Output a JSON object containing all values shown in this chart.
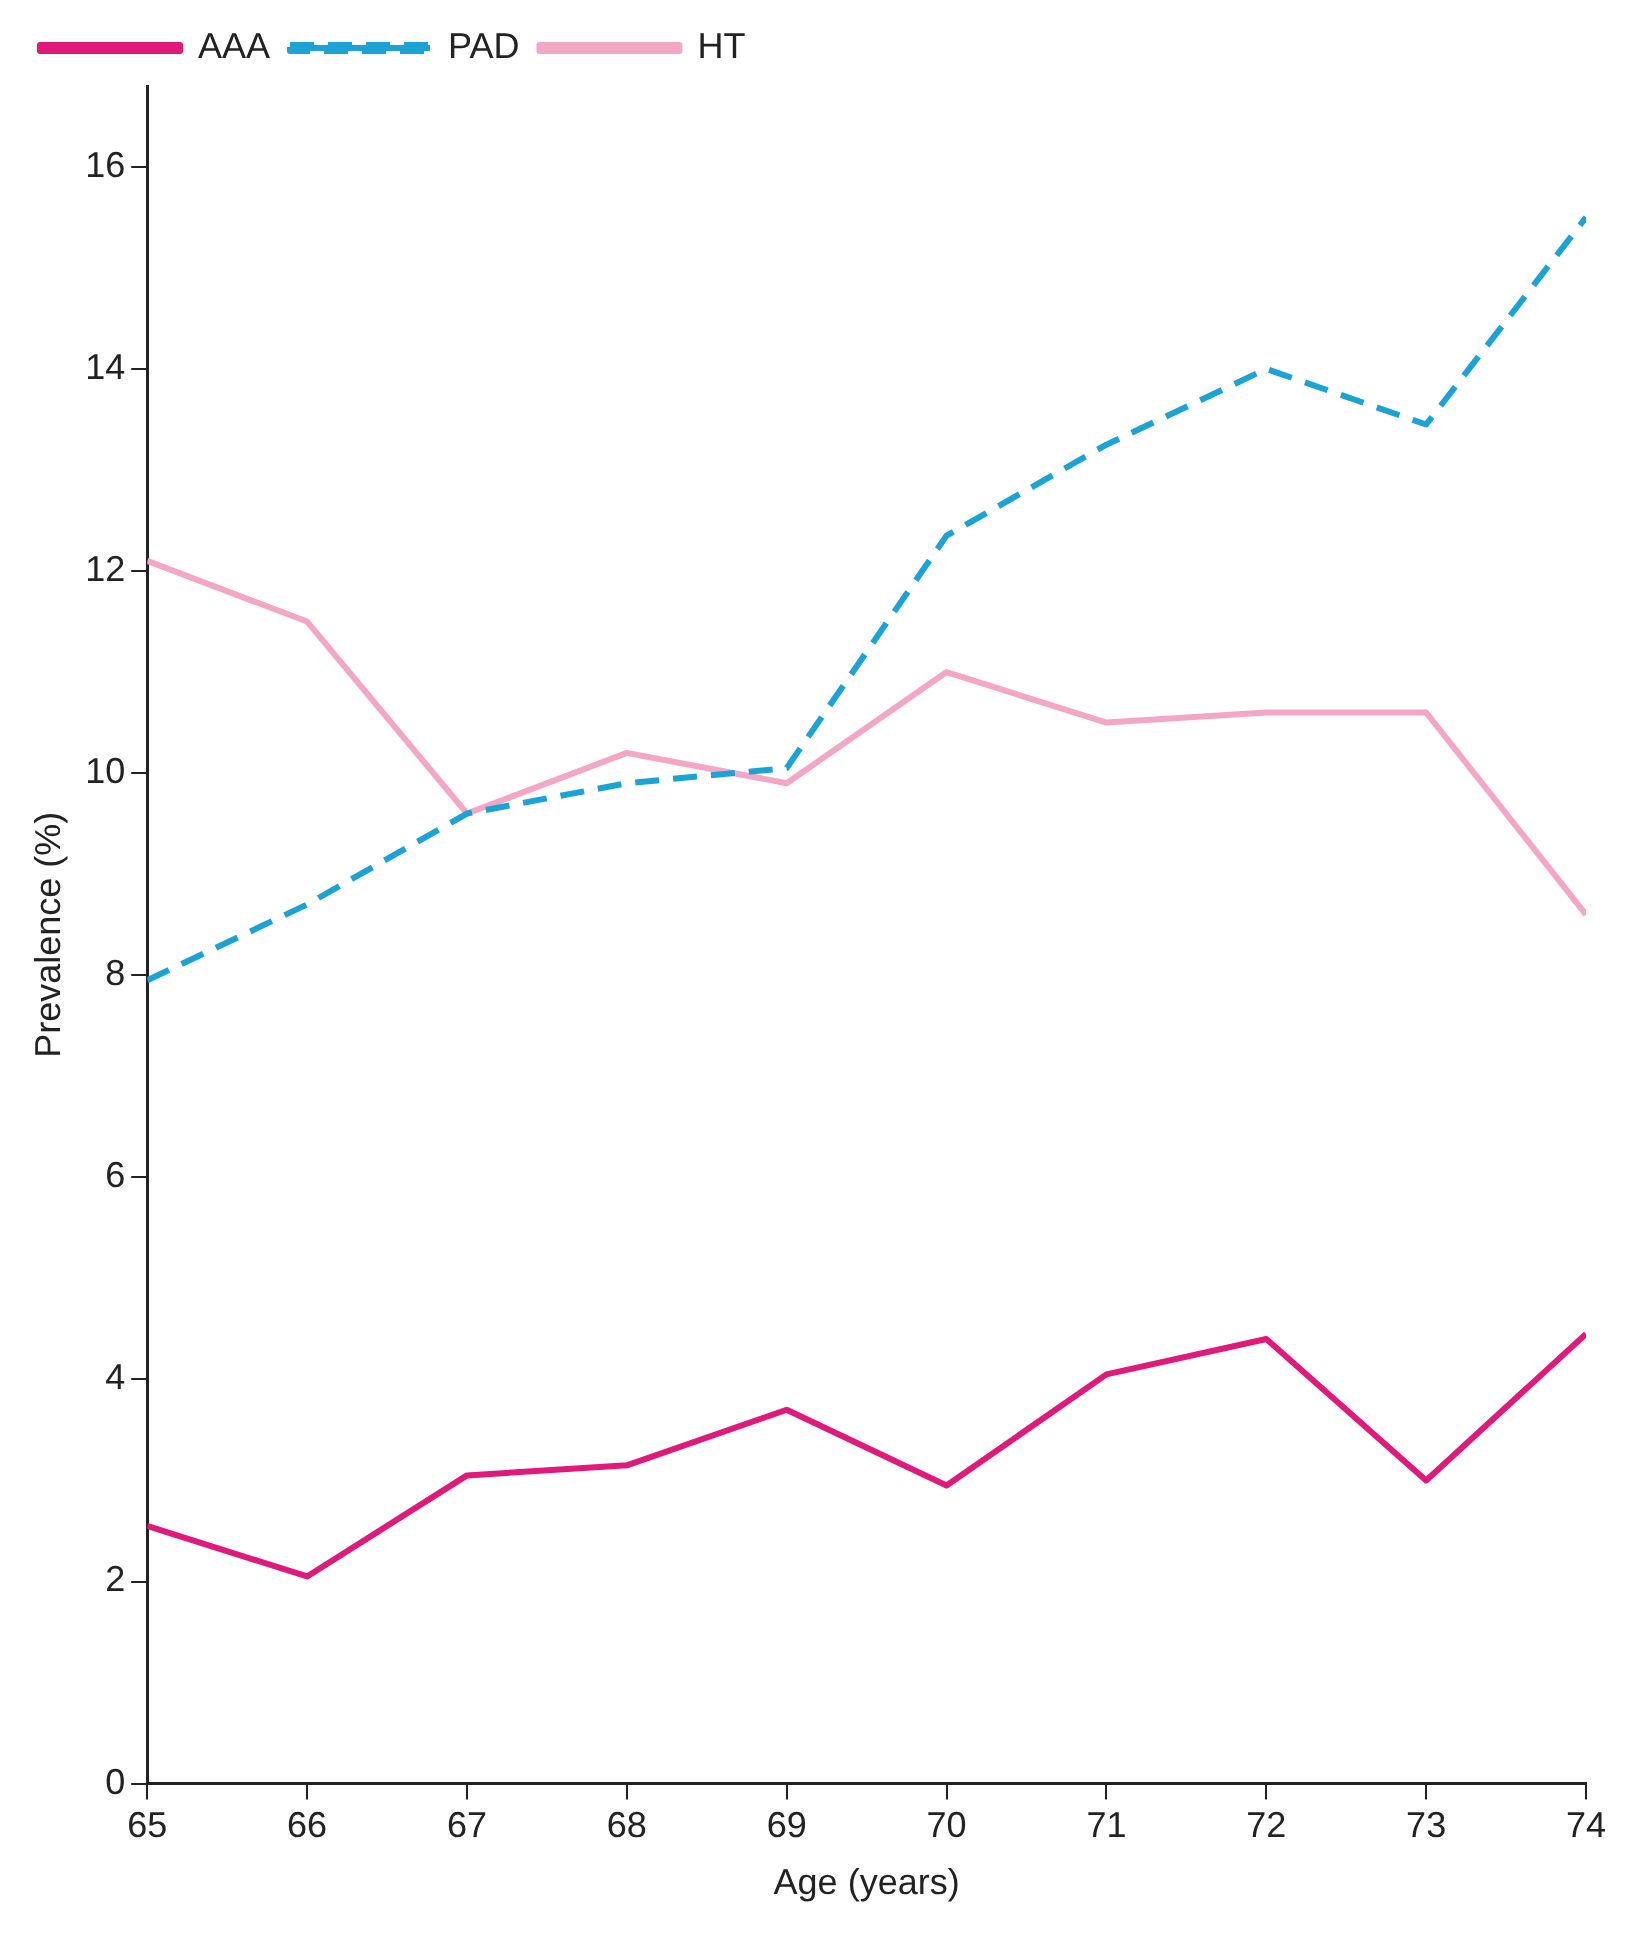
{
  "chart_data": {
    "type": "line",
    "xlabel": "Age (years)",
    "ylabel": "Prevalence (%)",
    "x": [
      65,
      66,
      67,
      68,
      69,
      70,
      71,
      72,
      73,
      74
    ],
    "xlim": [
      65,
      74
    ],
    "xticks": [
      65,
      66,
      67,
      68,
      69,
      70,
      71,
      72,
      73,
      74
    ],
    "ylim": [
      0,
      16.8
    ],
    "yticks": [
      0,
      2,
      4,
      6,
      8,
      10,
      12,
      14,
      16
    ],
    "grid": false,
    "legend": "top left",
    "marker": "none",
    "series": [
      {
        "name": "AAA",
        "color": "#e0197a",
        "line_style": "solid",
        "values": [
          2.55,
          2.05,
          3.05,
          3.15,
          3.7,
          2.95,
          4.05,
          4.4,
          3.0,
          4.45
        ]
      },
      {
        "name": "PAD",
        "color": "#1ba3d6",
        "line_style": "dashed",
        "values": [
          7.95,
          8.7,
          9.6,
          9.9,
          10.05,
          12.35,
          13.25,
          14.0,
          13.45,
          15.5
        ]
      },
      {
        "name": "HT",
        "color": "#f4a6c6",
        "line_style": "solid",
        "values": [
          12.1,
          11.5,
          9.6,
          10.2,
          9.9,
          11.0,
          10.5,
          10.6,
          10.6,
          8.6
        ]
      }
    ]
  }
}
